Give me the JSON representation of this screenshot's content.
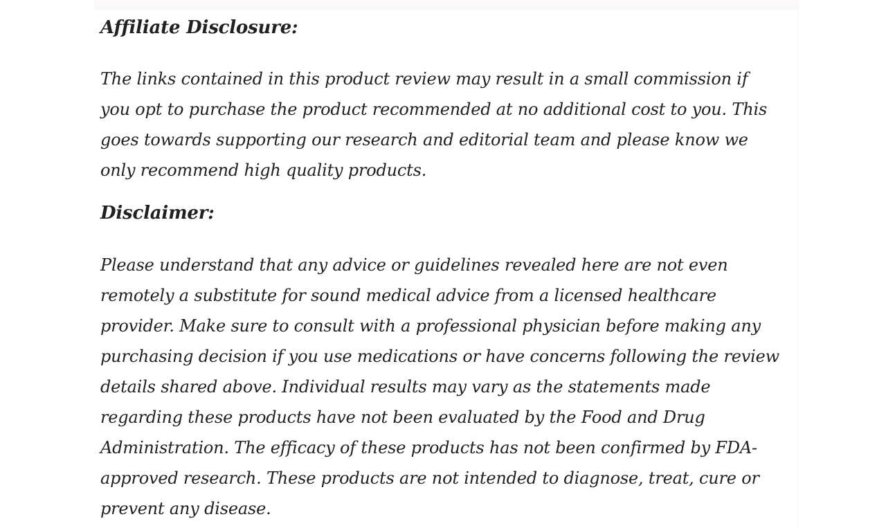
{
  "page": {
    "background_color": "#ffffff",
    "text_color": "#212121",
    "top_strip_color": "#faf8f8",
    "right_hairline_color": "#f6f5f5"
  },
  "affiliate": {
    "heading": "Affiliate Disclosure:",
    "paragraph_lines": [
      "The links contained in this product review may result in a small commission if",
      "you opt to purchase the product recommended at no additional cost to you. This",
      "goes towards supporting our research and editorial team and please know we",
      "only recommend high quality products."
    ]
  },
  "disclaimer": {
    "heading": "Disclaimer:",
    "paragraph_lines": [
      "Please understand that any advice or guidelines revealed here are not even",
      "remotely a substitute for sound medical advice from a licensed healthcare",
      "provider. Make sure to consult with a professional physician before making any",
      "purchasing decision if you use medications or have concerns following the review",
      "details shared above. Individual results may vary as the statements made",
      "regarding these products have not been evaluated by the Food and Drug",
      "Administration. The efficacy of these products has not been confirmed by FDA-",
      "approved research. These products are not intended to diagnose, treat, cure or",
      "prevent any disease."
    ]
  }
}
